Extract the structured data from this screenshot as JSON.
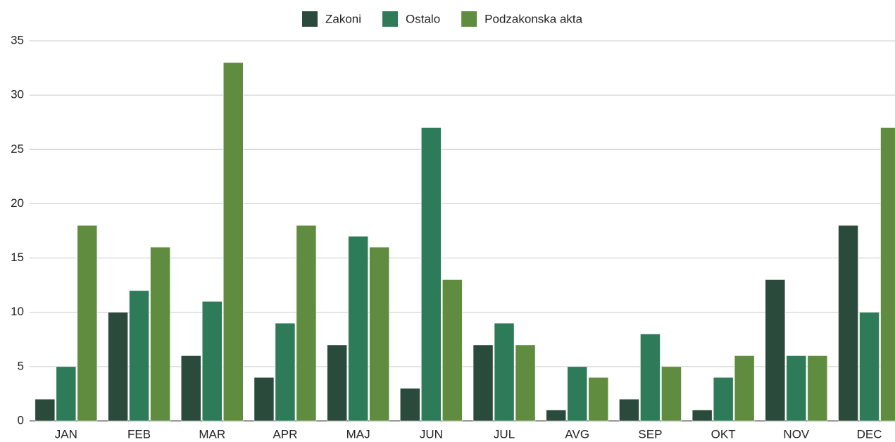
{
  "chart_data": {
    "type": "bar",
    "categories": [
      "JAN",
      "FEB",
      "MAR",
      "APR",
      "MAJ",
      "JUN",
      "JUL",
      "AVG",
      "SEP",
      "OKT",
      "NOV",
      "DEC"
    ],
    "series": [
      {
        "name": "Zakoni",
        "color": "#2a4a3c",
        "values": [
          2,
          10,
          6,
          4,
          7,
          3,
          7,
          1,
          2,
          1,
          13,
          18
        ]
      },
      {
        "name": "Ostalo",
        "color": "#2e7b5a",
        "values": [
          5,
          12,
          11,
          9,
          17,
          27,
          9,
          5,
          8,
          4,
          6,
          10
        ]
      },
      {
        "name": "Podzakonska akta",
        "color": "#5f8c3e",
        "values": [
          18,
          16,
          33,
          18,
          16,
          13,
          7,
          4,
          5,
          6,
          6,
          27
        ]
      }
    ],
    "ylim": [
      0,
      35
    ],
    "yticks": [
      0,
      5,
      10,
      15,
      20,
      25,
      30,
      35
    ],
    "grid": true,
    "legend": "top"
  }
}
